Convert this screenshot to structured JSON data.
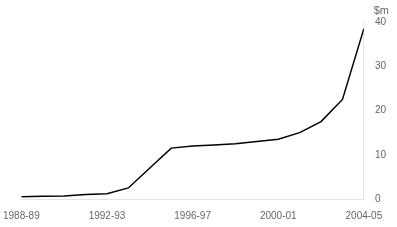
{
  "chart_data": {
    "type": "line",
    "x": [
      1988.5,
      1989.5,
      1990.5,
      1991.5,
      1992.5,
      1993.5,
      1994.5,
      1995.5,
      1996.5,
      1997.5,
      1998.5,
      1999.5,
      2000.5,
      2001.5,
      2002.5,
      2003.5,
      2004.5
    ],
    "values": [
      0.5,
      0.6,
      0.7,
      1.0,
      1.2,
      2.5,
      7.0,
      11.5,
      12.0,
      12.2,
      12.5,
      13.0,
      13.5,
      15.0,
      17.5,
      22.5,
      38.5
    ],
    "color": "#000000",
    "xlim": [
      1988.5,
      2004.5
    ],
    "xticks": [
      {
        "value": 1988.5,
        "label": "1988-89"
      },
      {
        "value": 1992.5,
        "label": "1992-93"
      },
      {
        "value": 1996.5,
        "label": "1996-97"
      },
      {
        "value": 2000.5,
        "label": "2000-01"
      },
      {
        "value": 2004.5,
        "label": "2004-05"
      }
    ],
    "ylim": [
      0,
      40
    ],
    "yticks": [
      0,
      10,
      20,
      30,
      40
    ],
    "y_label": "$m",
    "grid": false
  }
}
